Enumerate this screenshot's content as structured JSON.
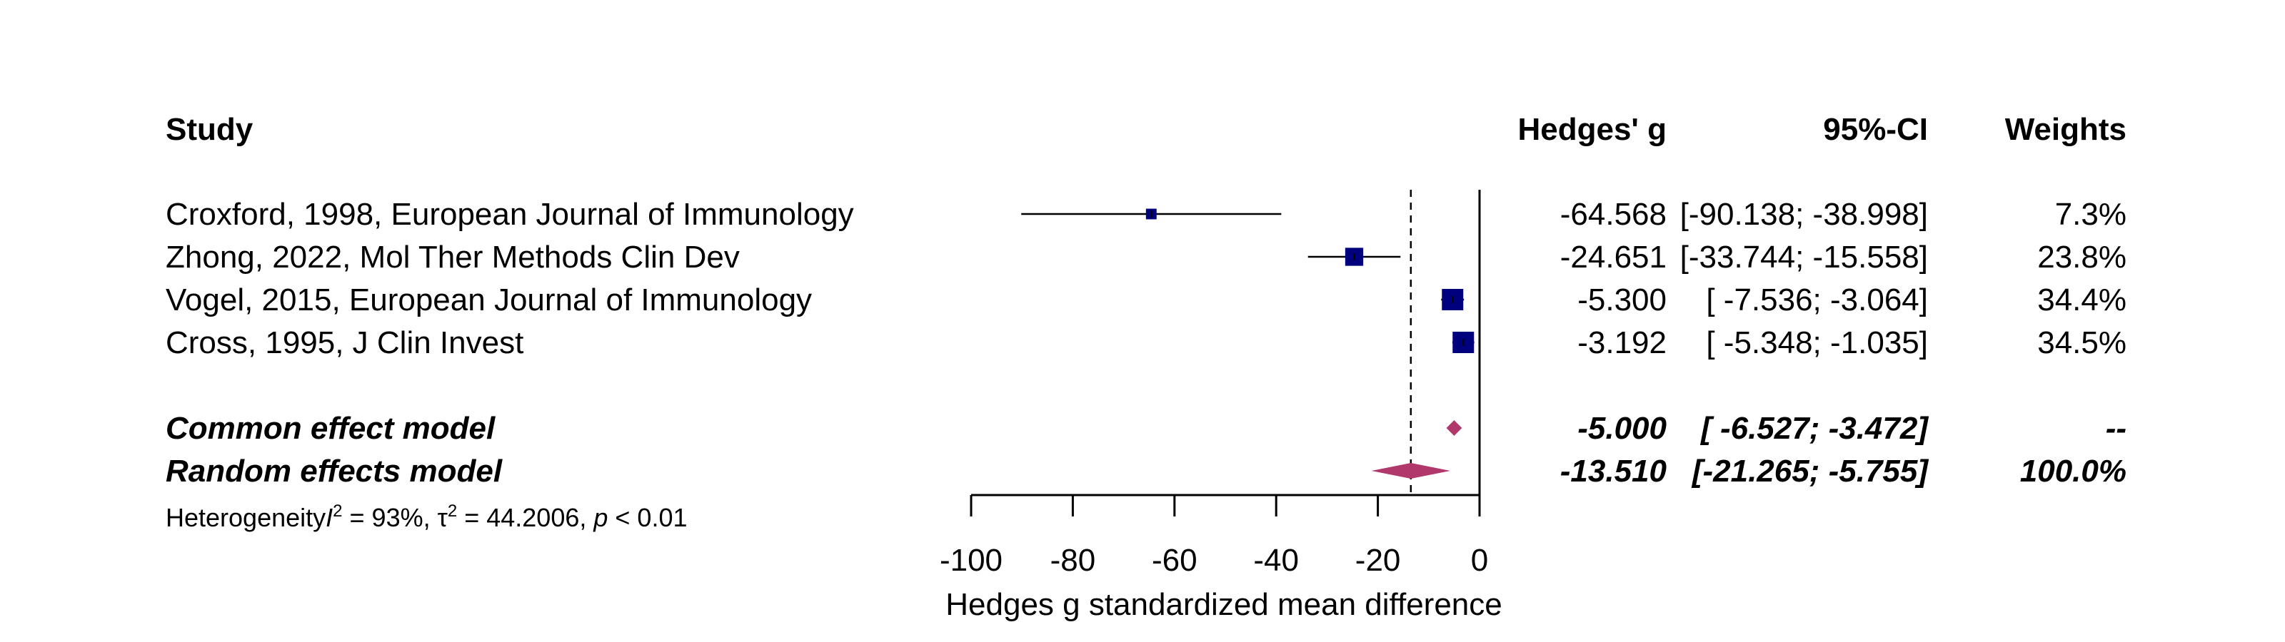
{
  "chart_data": {
    "type": "forest",
    "headers": {
      "study": "Study",
      "effect": "Hedges' g",
      "ci": "95%-CI",
      "weights": "Weights"
    },
    "xlabel": "Hedges g standardized mean difference",
    "xlim": [
      -100,
      0
    ],
    "xticks": [
      -100,
      -80,
      -60,
      -40,
      -20,
      0
    ],
    "xtick_labels": [
      "-100",
      "-80",
      "-60",
      "-40",
      "-20",
      "0"
    ],
    "reference_line_x": -13.51,
    "studies": [
      {
        "label": "Croxford, 1998, European Journal of Immunology",
        "g": -64.568,
        "lower": -90.138,
        "upper": -38.998,
        "g_text": "-64.568",
        "ci_text": "[-90.138; -38.998]",
        "weight_text": "7.3%",
        "weight": 7.3
      },
      {
        "label": "Zhong, 2022, Mol Ther Methods Clin Dev",
        "g": -24.651,
        "lower": -33.744,
        "upper": -15.558,
        "g_text": "-24.651",
        "ci_text": "[-33.744; -15.558]",
        "weight_text": "23.8%",
        "weight": 23.8
      },
      {
        "label": "Vogel, 2015, European Journal of Immunology",
        "g": -5.3,
        "lower": -7.536,
        "upper": -3.064,
        "g_text": "-5.300",
        "ci_text": "[ -7.536;  -3.064]",
        "weight_text": "34.4%",
        "weight": 34.4
      },
      {
        "label": "Cross, 1995, J Clin Invest",
        "g": -3.192,
        "lower": -5.348,
        "upper": -1.035,
        "g_text": "-3.192",
        "ci_text": "[ -5.348;  -1.035]",
        "weight_text": "34.5%",
        "weight": 34.5
      }
    ],
    "pooled": [
      {
        "label": "Common effect model",
        "g": -5.0,
        "lower": -6.527,
        "upper": -3.472,
        "g_text": "-5.000",
        "ci_text": "[ -6.527;  -3.472]",
        "weight_text": "--"
      },
      {
        "label": "Random effects model",
        "g": -13.51,
        "lower": -21.265,
        "upper": -5.755,
        "g_text": "-13.510",
        "ci_text": "[-21.265;  -5.755]",
        "weight_text": "100.0%"
      }
    ],
    "heterogeneity": {
      "prefix": "Heterogeneity",
      "i2_symbol": "I",
      "i2_value": " = 93%, ",
      "tau_symbol": "τ",
      "tau_value": " = 44.2006, ",
      "p_symbol": "p",
      "p_value": " < 0.01"
    },
    "colors": {
      "study_square": "#00007f",
      "pooled_diamond": "#b0386a",
      "line": "#000000"
    }
  }
}
